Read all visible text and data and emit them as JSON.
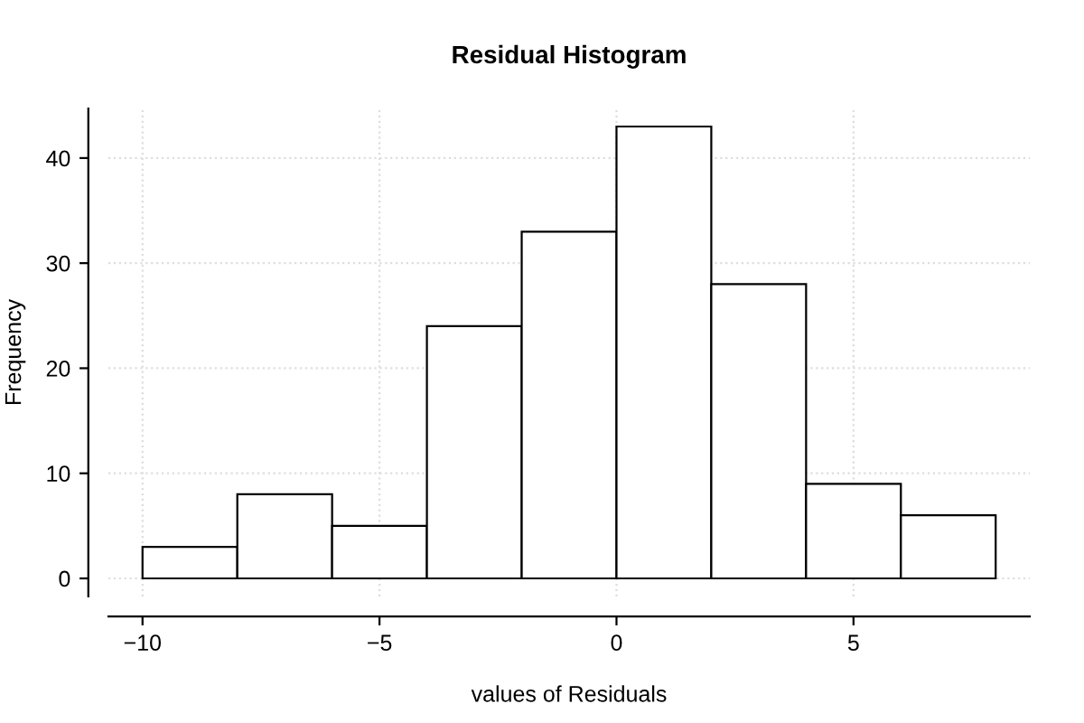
{
  "chart_data": {
    "type": "histogram",
    "title": "Residual Histogram",
    "xlabel": "values of Residuals",
    "ylabel": "Frequency",
    "bins": [
      -10,
      -8,
      -6,
      -4,
      -2,
      0,
      2,
      4,
      6,
      8
    ],
    "values": [
      3,
      8,
      5,
      24,
      33,
      43,
      28,
      9,
      6
    ],
    "color": "#ffffff",
    "xlim": [
      -10.72,
      8.72
    ],
    "ylim": [
      -1.72,
      44.72
    ],
    "xticks": [
      {
        "value": -10,
        "label": "−10"
      },
      {
        "value": -5,
        "label": "−5"
      },
      0,
      5
    ],
    "yticks": [
      0,
      10,
      20,
      30,
      40
    ],
    "grid": true
  }
}
